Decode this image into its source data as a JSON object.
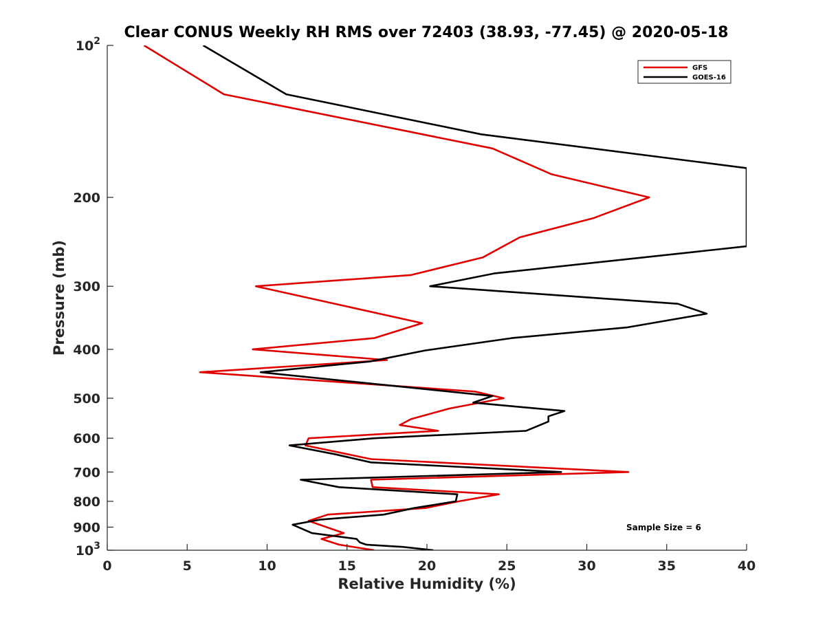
{
  "chart_data": {
    "type": "line",
    "title": "Clear CONUS Weekly RH RMS over 72403 (38.93, -77.45) @ 2020-05-18",
    "xlabel": "Relative Humidity (%)",
    "ylabel": "Pressure (mb)",
    "xlim": [
      0,
      40
    ],
    "ylim": [
      100,
      1000
    ],
    "y_scale": "log",
    "y_reversed": true,
    "x_ticks": [
      0,
      5,
      10,
      15,
      20,
      25,
      30,
      35,
      40
    ],
    "x_tick_labels": [
      "0",
      "5",
      "10",
      "15",
      "20",
      "25",
      "30",
      "35",
      "40"
    ],
    "y_ticks": [
      100,
      200,
      300,
      400,
      500,
      600,
      700,
      800,
      900,
      1000
    ],
    "y_tick_labels": [
      {
        "base": "10",
        "exp": "2"
      },
      {
        "base": "200",
        "exp": ""
      },
      {
        "base": "300",
        "exp": ""
      },
      {
        "base": "400",
        "exp": ""
      },
      {
        "base": "500",
        "exp": ""
      },
      {
        "base": "600",
        "exp": ""
      },
      {
        "base": "700",
        "exp": ""
      },
      {
        "base": "800",
        "exp": ""
      },
      {
        "base": "900",
        "exp": ""
      },
      {
        "base": "10",
        "exp": "3"
      }
    ],
    "grid": false,
    "legend_position": "top-right",
    "annotation": "Sample Size = 6",
    "series": [
      {
        "name": "GFS",
        "color": "#e00000",
        "points": [
          [
            2.3,
            100
          ],
          [
            7.3,
            125
          ],
          [
            24.1,
            160
          ],
          [
            27.8,
            180
          ],
          [
            33.9,
            200
          ],
          [
            30.4,
            220
          ],
          [
            25.8,
            240
          ],
          [
            23.5,
            263
          ],
          [
            19.0,
            285
          ],
          [
            9.3,
            300
          ],
          [
            19.7,
            355
          ],
          [
            16.7,
            380
          ],
          [
            9.1,
            400
          ],
          [
            17.5,
            420
          ],
          [
            5.8,
            444
          ],
          [
            23.0,
            485
          ],
          [
            24.8,
            500
          ],
          [
            21.4,
            524
          ],
          [
            19.0,
            550
          ],
          [
            18.3,
            565
          ],
          [
            20.7,
            580
          ],
          [
            12.6,
            600
          ],
          [
            12.4,
            620
          ],
          [
            16.5,
            660
          ],
          [
            32.6,
            700
          ],
          [
            16.5,
            725
          ],
          [
            16.6,
            750
          ],
          [
            24.5,
            775
          ],
          [
            22.0,
            800
          ],
          [
            19.9,
            825
          ],
          [
            13.8,
            850
          ],
          [
            12.6,
            875
          ],
          [
            14.8,
            925
          ],
          [
            13.4,
            950
          ],
          [
            14.5,
            975
          ],
          [
            16.7,
            1000
          ]
        ]
      },
      {
        "name": "GOES-16",
        "color": "#000000",
        "points": [
          [
            6.0,
            100
          ],
          [
            11.2,
            125
          ],
          [
            23.4,
            150
          ],
          [
            40.0,
            175
          ],
          [
            40.0,
            250
          ],
          [
            24.2,
            283
          ],
          [
            20.2,
            300
          ],
          [
            35.7,
            325
          ],
          [
            37.5,
            340
          ],
          [
            32.5,
            362
          ],
          [
            25.3,
            380
          ],
          [
            19.9,
            402
          ],
          [
            16.4,
            423
          ],
          [
            9.6,
            444
          ],
          [
            24.1,
            495
          ],
          [
            22.9,
            510
          ],
          [
            28.6,
            530
          ],
          [
            27.6,
            543
          ],
          [
            27.6,
            556
          ],
          [
            26.2,
            580
          ],
          [
            16.7,
            600
          ],
          [
            11.4,
            620
          ],
          [
            14.2,
            645
          ],
          [
            16.5,
            670
          ],
          [
            28.4,
            700
          ],
          [
            12.1,
            725
          ],
          [
            14.5,
            750
          ],
          [
            21.9,
            775
          ],
          [
            21.8,
            800
          ],
          [
            19.2,
            825
          ],
          [
            17.3,
            850
          ],
          [
            13.3,
            870
          ],
          [
            11.6,
            890
          ],
          [
            12.8,
            925
          ],
          [
            15.6,
            950
          ],
          [
            15.8,
            965
          ],
          [
            16.2,
            975
          ],
          [
            18.5,
            985
          ],
          [
            20.4,
            1000
          ]
        ]
      }
    ]
  }
}
